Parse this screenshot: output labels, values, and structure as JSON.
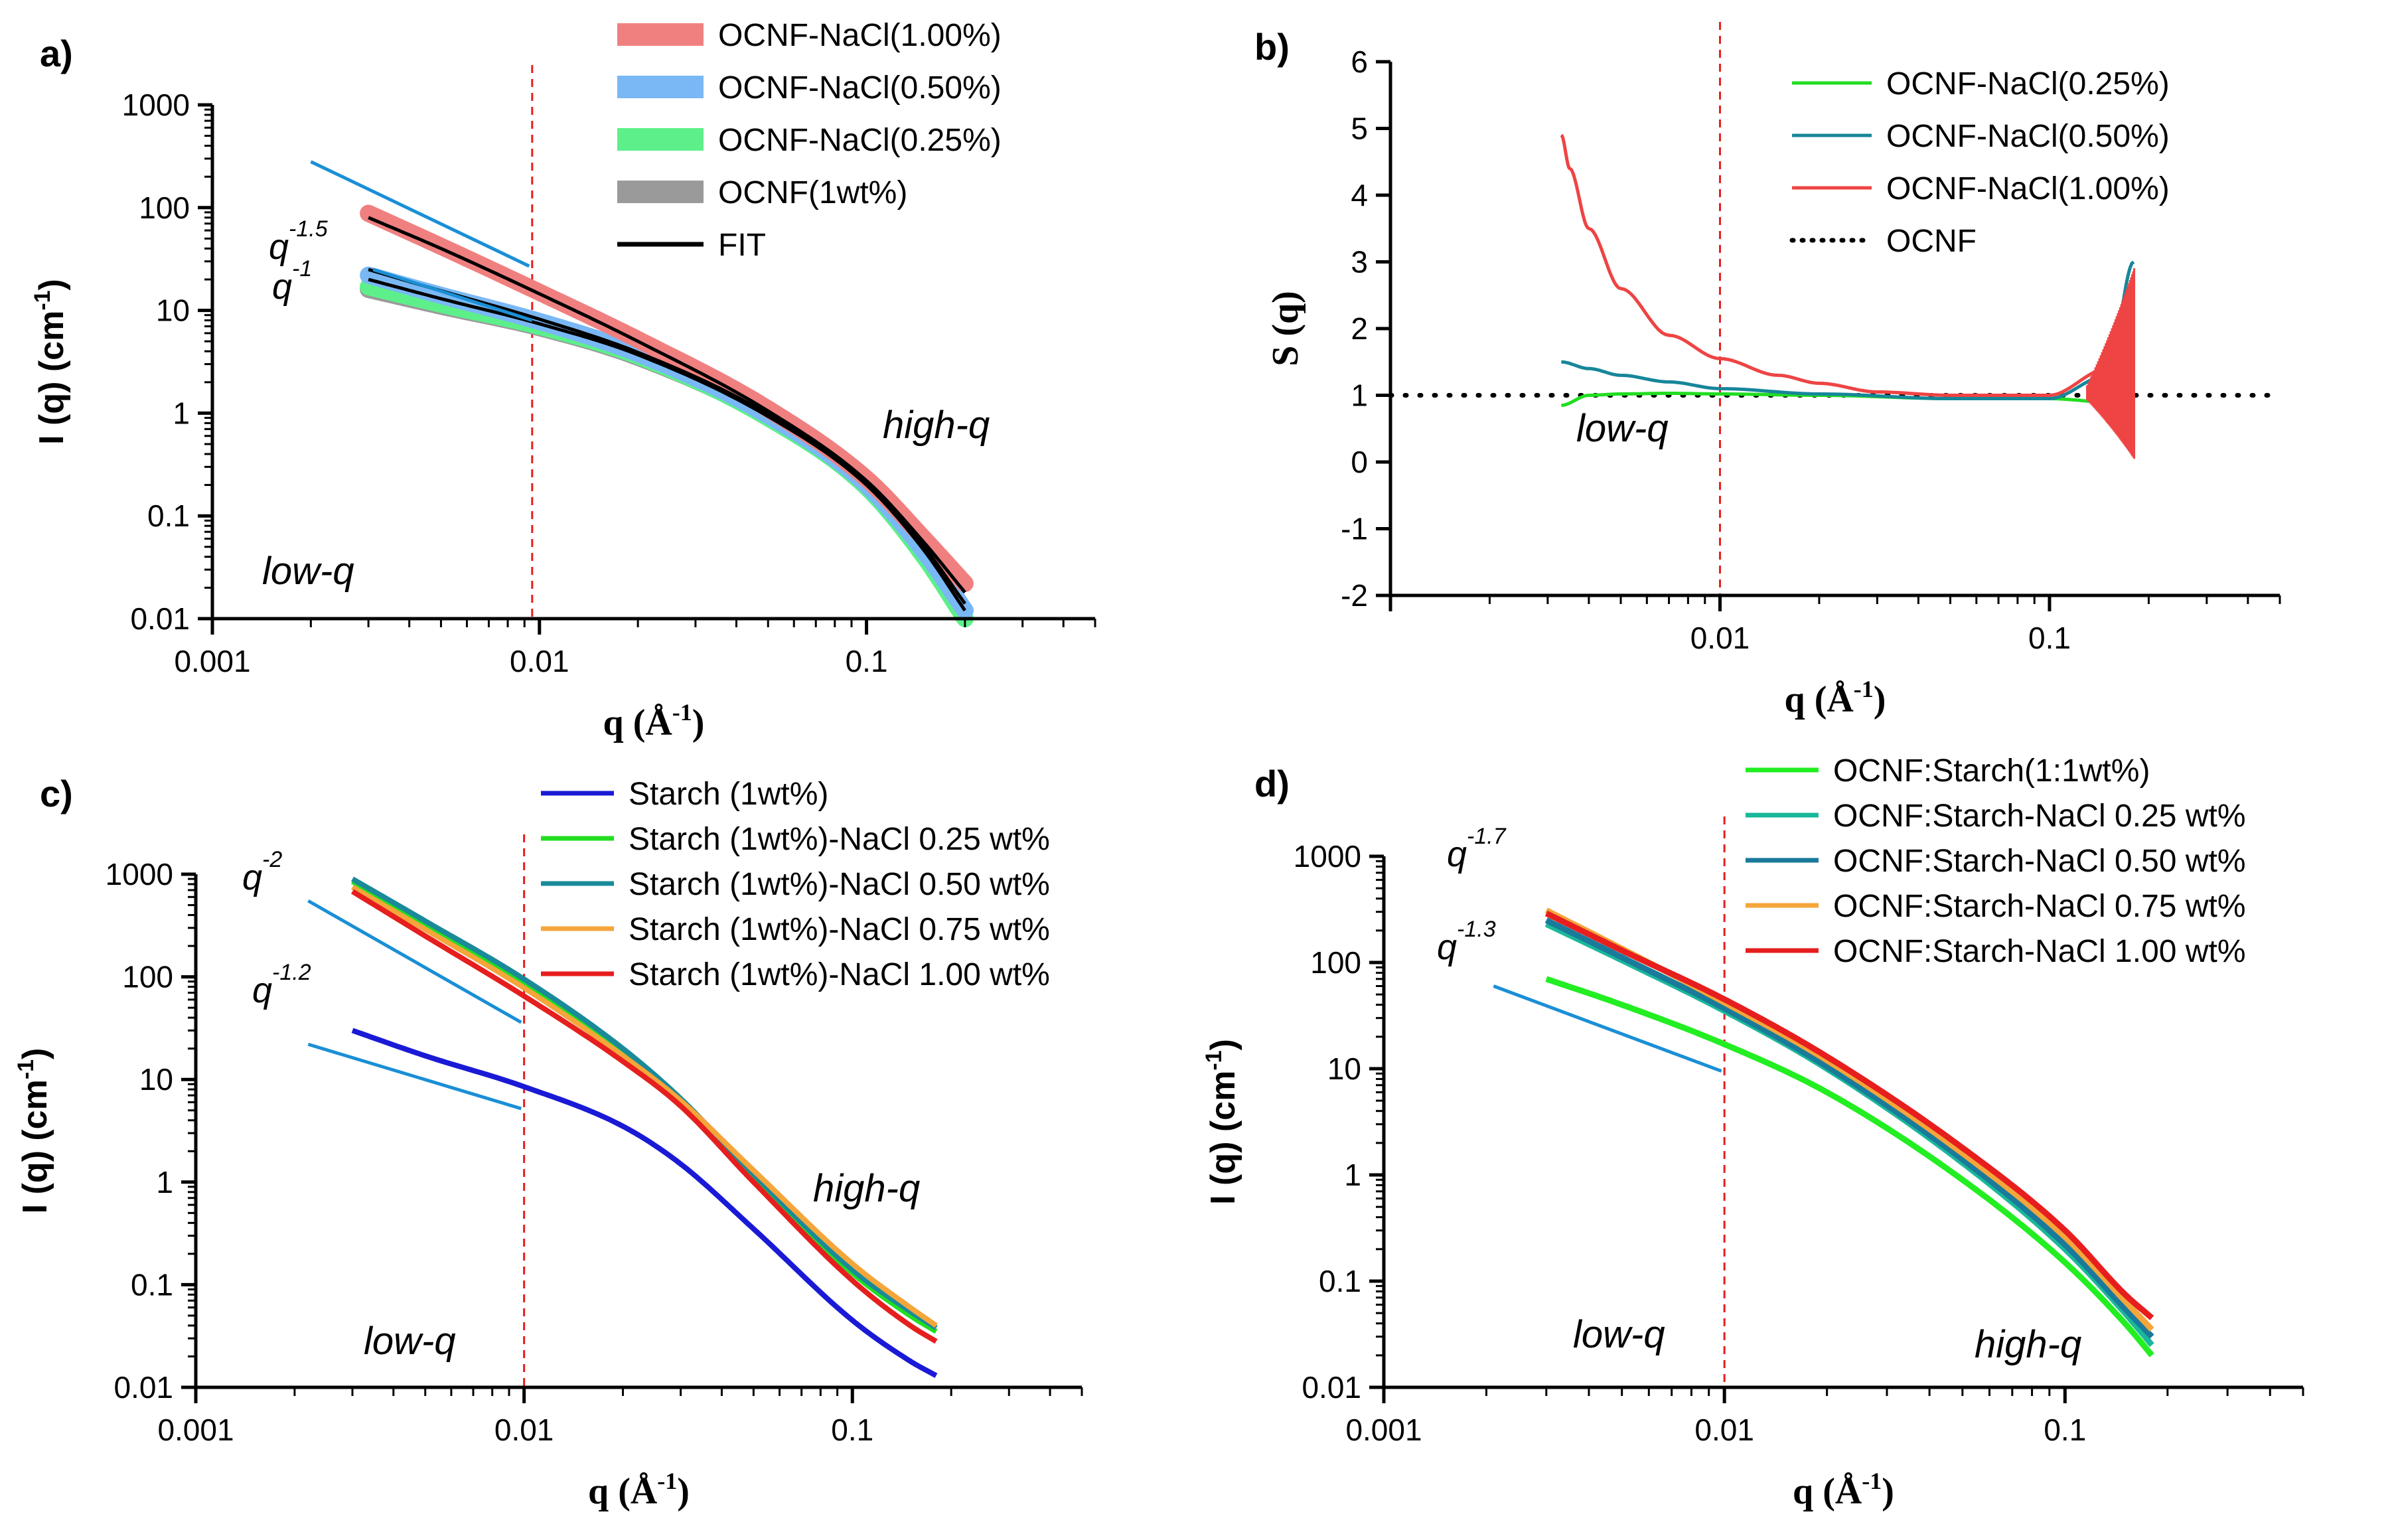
{
  "colors": {
    "nacl100_band": "#f08080",
    "nacl050_band": "#7ab8f5",
    "nacl025_band": "#5df08a",
    "ocnf_band": "#9a9a9a",
    "fit": "#000000",
    "b_025": "#22dd22",
    "b_050": "#17869a",
    "b_100": "#ee4444",
    "b_ocnf": "#000000",
    "c_starch": "#1a1ad6",
    "c_025": "#22dd22",
    "c_050": "#1a8a9a",
    "c_075": "#f5a53a",
    "c_100": "#e61e1e",
    "d_11": "#22ee22",
    "d_025": "#1ab89a",
    "d_050": "#1a7a9a",
    "d_075": "#f5a53a",
    "d_100": "#e61e1e",
    "powerlaw": "#1a8fd6",
    "guide": "#e61e1e"
  },
  "chart_data": [
    {
      "panel": "a)",
      "type": "line",
      "xscale": "log",
      "yscale": "log",
      "xlim": [
        0.001,
        0.5
      ],
      "ylim": [
        0.01,
        1000
      ],
      "xticks": [
        "0.001",
        "0.01",
        "0.1"
      ],
      "yticks": [
        "0.01",
        "0.1",
        "1",
        "10",
        "100",
        "1000"
      ],
      "xlabel_main": "q (Å",
      "xlabel_sup": "-1",
      "xlabel_end": ")",
      "ylabel_main": "I (q) (cm",
      "ylabel_sup": "-1",
      "ylabel_end": ")",
      "guide_x": 0.0095,
      "legend_position": "top-right",
      "annotations": {
        "low": "low-q",
        "high": "high-q"
      },
      "powerlaws": [
        {
          "label": "q",
          "exponent": "-1.5",
          "x1": 0.002,
          "y1": 280,
          "x2": 0.0093,
          "y2": 27
        },
        {
          "label": "q",
          "exponent": "-1",
          "x1": 0.0031,
          "y1": 25,
          "x2": 0.0095,
          "y2": 8
        }
      ],
      "series": [
        {
          "name": "OCNF-NaCl(1.00%)",
          "style": "band",
          "color_key": "nacl100_band",
          "x": [
            0.003,
            0.005,
            0.01,
            0.02,
            0.05,
            0.1,
            0.15,
            0.2
          ],
          "values": [
            88,
            42,
            15,
            5.2,
            1.1,
            0.23,
            0.06,
            0.022
          ]
        },
        {
          "name": "OCNF-NaCl(0.50%)",
          "style": "band",
          "color_key": "nacl050_band",
          "x": [
            0.003,
            0.005,
            0.01,
            0.02,
            0.05,
            0.1,
            0.15,
            0.2
          ],
          "values": [
            22,
            14,
            7.8,
            3.8,
            0.95,
            0.2,
            0.045,
            0.012
          ]
        },
        {
          "name": "OCNF-NaCl(0.25%)",
          "style": "band",
          "color_key": "nacl025_band",
          "x": [
            0.003,
            0.005,
            0.01,
            0.02,
            0.05,
            0.1,
            0.15,
            0.2
          ],
          "values": [
            17,
            11.5,
            7,
            3.6,
            0.9,
            0.19,
            0.04,
            0.01
          ]
        },
        {
          "name": "OCNF(1wt%)",
          "style": "band",
          "color_key": "ocnf_band",
          "x": [
            0.003,
            0.005,
            0.01,
            0.02,
            0.05,
            0.1,
            0.15,
            0.2
          ],
          "values": [
            16,
            11,
            6.8,
            3.5,
            0.92,
            0.2,
            0.045,
            0.012
          ]
        },
        {
          "name": "FIT",
          "style": "line",
          "color_key": "fit",
          "x": [
            0.003,
            0.005,
            0.01,
            0.02,
            0.05,
            0.1,
            0.15,
            0.2
          ],
          "values": [
            80,
            40,
            14.5,
            5,
            1.05,
            0.22,
            0.055,
            0.018
          ]
        }
      ],
      "extra_fits": [
        {
          "x": [
            0.003,
            0.005,
            0.01,
            0.02,
            0.05,
            0.1,
            0.15,
            0.2
          ],
          "values": [
            25,
            15.5,
            8.2,
            3.9,
            0.98,
            0.21,
            0.05,
            0.014
          ]
        },
        {
          "x": [
            0.003,
            0.005,
            0.01,
            0.02,
            0.05,
            0.1,
            0.15,
            0.2
          ],
          "values": [
            20,
            13,
            7.4,
            3.7,
            0.93,
            0.2,
            0.046,
            0.012
          ]
        }
      ]
    },
    {
      "panel": "b)",
      "type": "line",
      "xscale": "log",
      "yscale": "linear",
      "xlim": [
        0.001,
        0.5
      ],
      "ylim": [
        -2,
        6
      ],
      "xticks": [
        "0.01",
        "0.1"
      ],
      "yticks": [
        "-2",
        "-1",
        "0",
        "1",
        "2",
        "3",
        "4",
        "5",
        "6"
      ],
      "xlabel_main": "q (Å",
      "xlabel_sup": "-1",
      "xlabel_end": ")",
      "ylabel": "S (q)",
      "guide_x": 0.01,
      "legend_position": "top-right",
      "annotations": {
        "low": "low-q"
      },
      "series": [
        {
          "name": "OCNF-NaCl(0.25%)",
          "color_key": "b_025",
          "x": [
            0.0033,
            0.004,
            0.005,
            0.007,
            0.01,
            0.02,
            0.05,
            0.1,
            0.15,
            0.18
          ],
          "values": [
            0.85,
            1.0,
            1.02,
            1.03,
            1.02,
            1.0,
            0.95,
            0.95,
            0.9,
            0.85
          ]
        },
        {
          "name": "OCNF-NaCl(0.50%)",
          "color_key": "b_050",
          "x": [
            0.0033,
            0.004,
            0.005,
            0.007,
            0.01,
            0.02,
            0.05,
            0.1,
            0.15,
            0.18
          ],
          "values": [
            1.5,
            1.4,
            1.3,
            1.2,
            1.1,
            1.02,
            0.95,
            0.95,
            1.3,
            3.0
          ]
        },
        {
          "name": "OCNF-NaCl(1.00%)",
          "color_key": "b_100",
          "x": [
            0.0033,
            0.0035,
            0.004,
            0.005,
            0.007,
            0.01,
            0.015,
            0.02,
            0.03,
            0.05,
            0.1,
            0.15,
            0.18
          ],
          "values": [
            4.9,
            4.4,
            3.5,
            2.6,
            1.9,
            1.55,
            1.3,
            1.18,
            1.05,
            1.0,
            1.0,
            1.4,
            2.6
          ]
        },
        {
          "name": "OCNF",
          "color_key": "b_ocnf",
          "style": "dotted",
          "x": [
            0.001,
            0.5
          ],
          "values": [
            1,
            1
          ]
        }
      ]
    },
    {
      "panel": "c)",
      "type": "line",
      "xscale": "log",
      "yscale": "log",
      "xlim": [
        0.001,
        0.5
      ],
      "ylim": [
        0.01,
        1000
      ],
      "xticks": [
        "0.001",
        "0.01",
        "0.1"
      ],
      "yticks": [
        "0.01",
        "0.1",
        "1",
        "10",
        "100",
        "1000"
      ],
      "xlabel_main": "q (Å",
      "xlabel_sup": "-1",
      "xlabel_end": ")",
      "ylabel_main": "I (q) (cm",
      "ylabel_sup": "-1",
      "ylabel_end": ")",
      "guide_x": 0.01,
      "legend_position": "top-right",
      "annotations": {
        "low": "low-q",
        "high": "high-q"
      },
      "powerlaws": [
        {
          "label": "q",
          "exponent": "-2",
          "x1": 0.0022,
          "y1": 550,
          "x2": 0.0098,
          "y2": 36
        },
        {
          "label": "q",
          "exponent": "-1.2",
          "x1": 0.0022,
          "y1": 22,
          "x2": 0.0098,
          "y2": 5.2
        }
      ],
      "series": [
        {
          "name": "Starch (1wt%)",
          "color_key": "c_starch",
          "x": [
            0.003,
            0.005,
            0.01,
            0.02,
            0.03,
            0.05,
            0.1,
            0.15,
            0.18
          ],
          "values": [
            30,
            17,
            8.5,
            3.5,
            1.5,
            0.35,
            0.045,
            0.018,
            0.013
          ]
        },
        {
          "name": "Starch (1wt%)-NaCl 0.25 wt%",
          "color_key": "c_025",
          "x": [
            0.003,
            0.005,
            0.01,
            0.02,
            0.03,
            0.05,
            0.1,
            0.15,
            0.18
          ],
          "values": [
            850,
            320,
            85,
            18,
            6,
            1.1,
            0.13,
            0.05,
            0.035
          ]
        },
        {
          "name": "Starch (1wt%)-NaCl 0.50 wt%",
          "color_key": "c_050",
          "x": [
            0.003,
            0.005,
            0.01,
            0.02,
            0.03,
            0.05,
            0.1,
            0.15,
            0.18
          ],
          "values": [
            900,
            350,
            95,
            20,
            6.5,
            1.2,
            0.14,
            0.055,
            0.038
          ]
        },
        {
          "name": "Starch (1wt%)-NaCl 0.75 wt%",
          "color_key": "c_075",
          "x": [
            0.003,
            0.005,
            0.01,
            0.02,
            0.03,
            0.05,
            0.1,
            0.15,
            0.18
          ],
          "values": [
            750,
            290,
            78,
            17,
            6.2,
            1.3,
            0.16,
            0.06,
            0.04
          ]
        },
        {
          "name": "Starch (1wt%)-NaCl 1.00 wt%",
          "color_key": "c_100",
          "x": [
            0.003,
            0.005,
            0.01,
            0.02,
            0.03,
            0.05,
            0.1,
            0.15,
            0.18
          ],
          "values": [
            680,
            250,
            65,
            15,
            5.5,
            1.0,
            0.11,
            0.04,
            0.028
          ]
        }
      ]
    },
    {
      "panel": "d)",
      "type": "line",
      "xscale": "log",
      "yscale": "log",
      "xlim": [
        0.001,
        0.5
      ],
      "ylim": [
        0.01,
        1000
      ],
      "xticks": [
        "0.001",
        "0.01",
        "0.1"
      ],
      "yticks": [
        "0.01",
        "0.1",
        "1",
        "10",
        "100",
        "1000"
      ],
      "xlabel_main": "q (Å",
      "xlabel_sup": "-1",
      "xlabel_end": ")",
      "ylabel_main": "I (q) (cm",
      "ylabel_sup": "-1",
      "ylabel_end": ")",
      "guide_x": 0.01,
      "legend_position": "top-right",
      "annotations": {
        "low": "low-q",
        "high": "high-q"
      },
      "powerlaws": [
        {
          "label": "q",
          "exponent": "-1.7",
          "x1": 0.0021,
          "y1": 60,
          "x2": 0.0098,
          "y2": 9.5
        },
        {
          "label": "q",
          "exponent": "-1.3",
          "x1": 0.0021,
          "y1": 60,
          "x2": 0.0098,
          "y2": 9.5,
          "hidden": true
        }
      ],
      "series": [
        {
          "name": "OCNF:Starch(1:1wt%)",
          "color_key": "d_11",
          "x": [
            0.003,
            0.005,
            0.01,
            0.02,
            0.05,
            0.1,
            0.15,
            0.18
          ],
          "values": [
            70,
            40,
            17,
            6,
            0.9,
            0.15,
            0.04,
            0.02
          ]
        },
        {
          "name": "OCNF:Starch-NaCl 0.25 wt%",
          "color_key": "d_025",
          "x": [
            0.003,
            0.005,
            0.01,
            0.02,
            0.05,
            0.1,
            0.15,
            0.18
          ],
          "values": [
            230,
            105,
            35,
            10,
            1.3,
            0.2,
            0.05,
            0.025
          ]
        },
        {
          "name": "OCNF:Starch-NaCl 0.50 wt%",
          "color_key": "d_050",
          "x": [
            0.003,
            0.005,
            0.01,
            0.02,
            0.05,
            0.1,
            0.15,
            0.18
          ],
          "values": [
            250,
            112,
            37,
            10.5,
            1.4,
            0.22,
            0.055,
            0.03
          ]
        },
        {
          "name": "OCNF:Starch-NaCl 0.75 wt%",
          "color_key": "d_075",
          "x": [
            0.003,
            0.005,
            0.01,
            0.02,
            0.05,
            0.1,
            0.15,
            0.18
          ],
          "values": [
            310,
            135,
            42,
            12,
            1.6,
            0.26,
            0.065,
            0.035
          ]
        },
        {
          "name": "OCNF:Starch-NaCl 1.00 wt%",
          "color_key": "d_100",
          "x": [
            0.003,
            0.005,
            0.01,
            0.02,
            0.05,
            0.1,
            0.15,
            0.18
          ],
          "values": [
            290,
            130,
            45,
            13,
            1.8,
            0.3,
            0.075,
            0.045
          ]
        }
      ]
    }
  ]
}
